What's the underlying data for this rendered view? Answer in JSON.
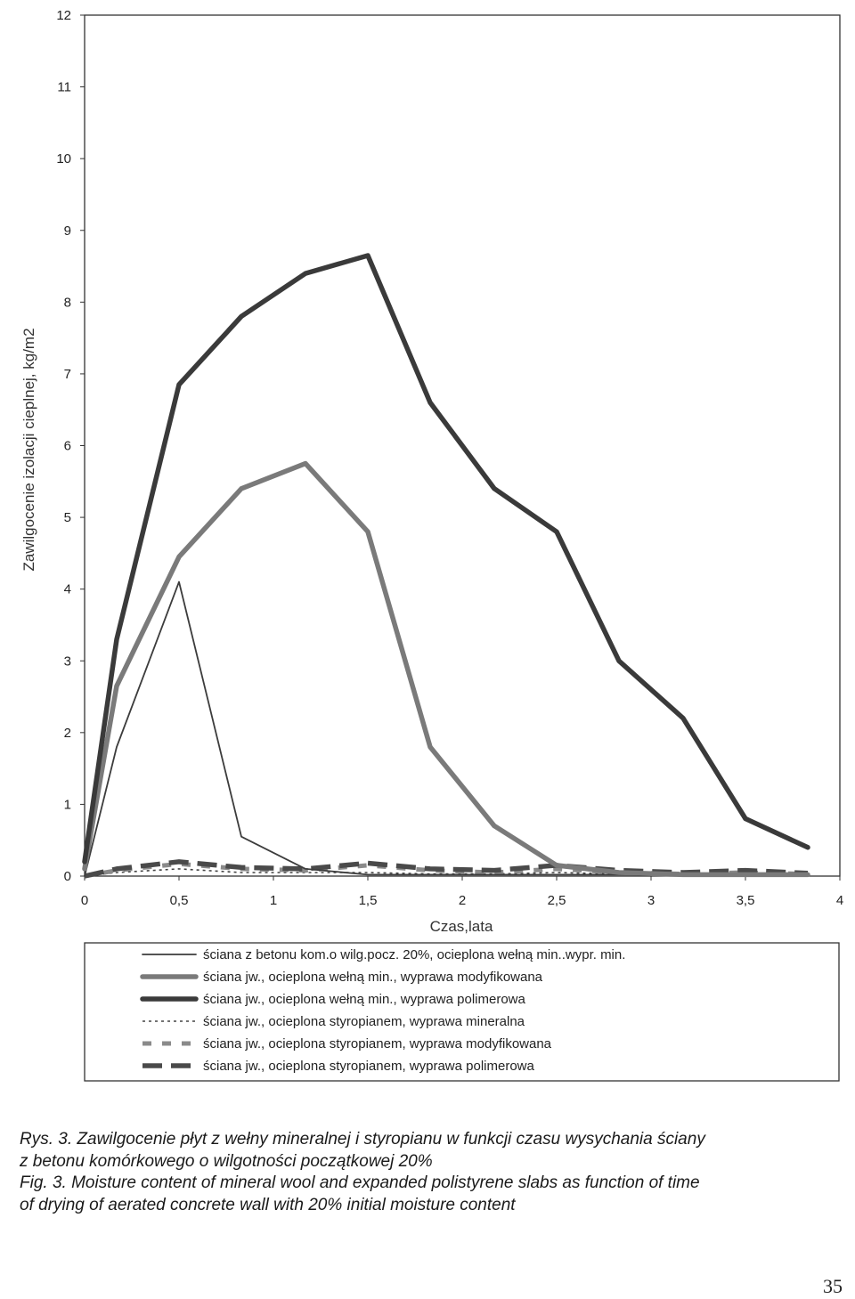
{
  "chart_data": {
    "type": "line",
    "xlabel": "Czas,lata",
    "ylabel": "Zawilgocenie izolacji cieplnej, kg/m2",
    "xlim": [
      0,
      4
    ],
    "ylim": [
      0,
      12
    ],
    "x_ticks": [
      "0",
      "0,5",
      "1",
      "1,5",
      "2",
      "2,5",
      "3",
      "3,5",
      "4"
    ],
    "y_ticks": [
      "0",
      "1",
      "2",
      "3",
      "4",
      "5",
      "6",
      "7",
      "8",
      "9",
      "10",
      "11",
      "12"
    ],
    "grid": false,
    "legend_position": "bottom",
    "series": [
      {
        "name": "ściana z betonu kom.o wilg.pocz. 20%, ocieplona wełną min..wypr. min.",
        "style": "thin",
        "color": "#3c3c3c",
        "x": [
          0,
          0.17,
          0.5,
          0.83,
          1.17,
          1.5,
          1.83,
          2.17,
          2.5,
          2.83,
          3.17,
          3.5,
          3.83
        ],
        "y": [
          0,
          1.8,
          4.1,
          0.55,
          0.1,
          0.02,
          0.02,
          0.02,
          0.02,
          0.02,
          0.02,
          0.02,
          0.02
        ]
      },
      {
        "name": "ściana jw., ocieplona wełną min., wyprawa modyfikowana",
        "style": "thick-gray",
        "color": "#7a7a7a",
        "x": [
          0,
          0.17,
          0.5,
          0.83,
          1.17,
          1.5,
          1.83,
          2.17,
          2.5,
          2.83,
          3.17,
          3.5,
          3.83
        ],
        "y": [
          0.1,
          2.65,
          4.45,
          5.4,
          5.75,
          4.8,
          1.8,
          0.7,
          0.15,
          0.05,
          0.02,
          0.02,
          0.02
        ]
      },
      {
        "name": "ściana jw., ocieplona wełną min., wyprawa polimerowa",
        "style": "thick-dark",
        "color": "#3a3a3a",
        "x": [
          0,
          0.17,
          0.5,
          0.83,
          1.17,
          1.5,
          1.83,
          2.17,
          2.5,
          2.83,
          3.17,
          3.5,
          3.83
        ],
        "y": [
          0.2,
          3.3,
          6.85,
          7.8,
          8.4,
          8.65,
          6.6,
          5.4,
          4.8,
          3.0,
          2.2,
          0.8,
          0.4
        ]
      },
      {
        "name": "ściana jw., ocieplona styropianem, wyprawa mineralna",
        "style": "dotted",
        "color": "#444444",
        "x": [
          0,
          0.17,
          0.5,
          0.83,
          1.17,
          1.5,
          1.83,
          2.17,
          2.5,
          2.83,
          3.17,
          3.5,
          3.83
        ],
        "y": [
          0,
          0.05,
          0.1,
          0.05,
          0.05,
          0.05,
          0.03,
          0.03,
          0.05,
          0.03,
          0.03,
          0.03,
          0.03
        ]
      },
      {
        "name": "ściana jw., ocieplona styropianem, wyprawa modyfikowana",
        "style": "dash-gray",
        "color": "#8a8a8a",
        "x": [
          0,
          0.17,
          0.5,
          0.83,
          1.17,
          1.5,
          1.83,
          2.17,
          2.5,
          2.83,
          3.17,
          3.5,
          3.83
        ],
        "y": [
          0,
          0.08,
          0.17,
          0.1,
          0.08,
          0.15,
          0.08,
          0.05,
          0.1,
          0.05,
          0.03,
          0.05,
          0.03
        ]
      },
      {
        "name": "ściana jw., ocieplona styropianem, wyprawa polimerowa",
        "style": "dash-dark",
        "color": "#4a4a4a",
        "x": [
          0,
          0.17,
          0.5,
          0.83,
          1.17,
          1.5,
          1.83,
          2.17,
          2.5,
          2.83,
          3.17,
          3.5,
          3.83
        ],
        "y": [
          0,
          0.1,
          0.2,
          0.12,
          0.1,
          0.18,
          0.1,
          0.08,
          0.15,
          0.08,
          0.05,
          0.08,
          0.04
        ]
      }
    ]
  },
  "caption": {
    "line1": "Rys. 3. Zawilgocenie płyt z wełny mineralnej i styropianu w funkcji czasu wysychania ściany",
    "line2": "z betonu komórkowego o wilgotności początkowej 20%",
    "line3": "Fig. 3. Moisture content of mineral wool and expanded polistyrene slabs as function of time",
    "line4": "of drying of aerated concrete wall with 20% initial moisture content"
  },
  "page_number": "35"
}
